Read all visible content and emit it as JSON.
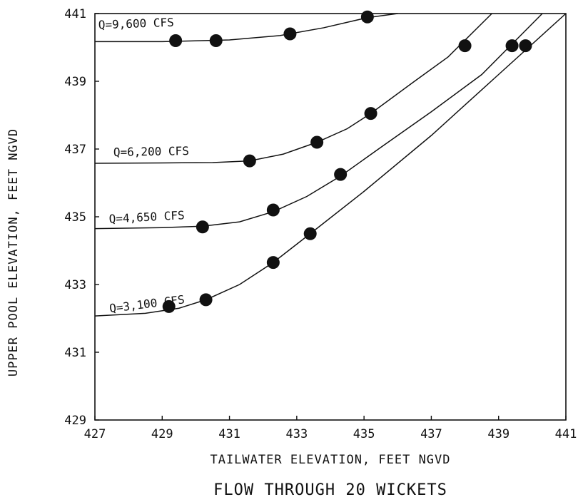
{
  "chart_data": {
    "type": "scatter",
    "title": "FLOW THROUGH 20 WICKETS",
    "xlabel": "TAILWATER ELEVATION, FEET NGVD",
    "ylabel": "UPPER POOL ELEVATION, FEET NGVD",
    "xlim": [
      427,
      441
    ],
    "ylim": [
      429,
      441
    ],
    "xticks": [
      427,
      429,
      431,
      433,
      435,
      437,
      439,
      441
    ],
    "yticks": [
      429,
      431,
      433,
      435,
      437,
      439,
      441
    ],
    "grid": false,
    "legend": "none",
    "series": [
      {
        "name": "Q=9,600 CFS",
        "points": [
          {
            "x": 429.4,
            "y": 440.2
          },
          {
            "x": 430.6,
            "y": 440.2
          },
          {
            "x": 432.8,
            "y": 440.4
          },
          {
            "x": 435.1,
            "y": 440.9
          }
        ],
        "curve": [
          {
            "x": 427.0,
            "y": 440.17
          },
          {
            "x": 429.0,
            "y": 440.17
          },
          {
            "x": 431.0,
            "y": 440.22
          },
          {
            "x": 432.5,
            "y": 440.35
          },
          {
            "x": 433.8,
            "y": 440.58
          },
          {
            "x": 435.1,
            "y": 440.88
          },
          {
            "x": 436.0,
            "y": 441.0
          }
        ]
      },
      {
        "name": "Q=6,200 CFS",
        "points": [
          {
            "x": 431.6,
            "y": 436.65
          },
          {
            "x": 433.6,
            "y": 437.2
          },
          {
            "x": 435.2,
            "y": 438.05
          },
          {
            "x": 438.0,
            "y": 440.05
          },
          {
            "x": 439.4,
            "y": 440.05
          }
        ],
        "curve": [
          {
            "x": 427.0,
            "y": 436.58
          },
          {
            "x": 429.0,
            "y": 436.59
          },
          {
            "x": 430.5,
            "y": 436.6
          },
          {
            "x": 431.6,
            "y": 436.65
          },
          {
            "x": 432.6,
            "y": 436.85
          },
          {
            "x": 433.6,
            "y": 437.2
          },
          {
            "x": 434.5,
            "y": 437.6
          },
          {
            "x": 435.2,
            "y": 438.05
          },
          {
            "x": 436.5,
            "y": 439.0
          },
          {
            "x": 437.5,
            "y": 439.72
          },
          {
            "x": 438.8,
            "y": 441.0
          }
        ]
      },
      {
        "name": "Q=4,650 CFS",
        "points": [
          {
            "x": 430.2,
            "y": 434.7
          },
          {
            "x": 432.3,
            "y": 435.2
          },
          {
            "x": 434.3,
            "y": 436.25
          },
          {
            "x": 439.8,
            "y": 440.05
          }
        ],
        "curve": [
          {
            "x": 427.0,
            "y": 434.65
          },
          {
            "x": 429.0,
            "y": 434.68
          },
          {
            "x": 430.2,
            "y": 434.72
          },
          {
            "x": 431.3,
            "y": 434.85
          },
          {
            "x": 432.3,
            "y": 435.15
          },
          {
            "x": 433.3,
            "y": 435.6
          },
          {
            "x": 434.3,
            "y": 436.2
          },
          {
            "x": 435.5,
            "y": 437.05
          },
          {
            "x": 437.0,
            "y": 438.1
          },
          {
            "x": 438.5,
            "y": 439.2
          },
          {
            "x": 440.3,
            "y": 441.0
          }
        ]
      },
      {
        "name": "Q=3,100 CFS",
        "points": [
          {
            "x": 429.2,
            "y": 432.35
          },
          {
            "x": 430.3,
            "y": 432.55
          },
          {
            "x": 432.3,
            "y": 433.65
          },
          {
            "x": 433.4,
            "y": 434.5
          }
        ],
        "curve": [
          {
            "x": 427.0,
            "y": 432.07
          },
          {
            "x": 428.5,
            "y": 432.15
          },
          {
            "x": 429.5,
            "y": 432.3
          },
          {
            "x": 430.3,
            "y": 432.55
          },
          {
            "x": 431.3,
            "y": 433.0
          },
          {
            "x": 432.3,
            "y": 433.65
          },
          {
            "x": 433.4,
            "y": 434.5
          },
          {
            "x": 435.0,
            "y": 435.75
          },
          {
            "x": 437.0,
            "y": 437.4
          },
          {
            "x": 439.0,
            "y": 439.2
          },
          {
            "x": 441.0,
            "y": 441.0
          }
        ]
      }
    ]
  }
}
